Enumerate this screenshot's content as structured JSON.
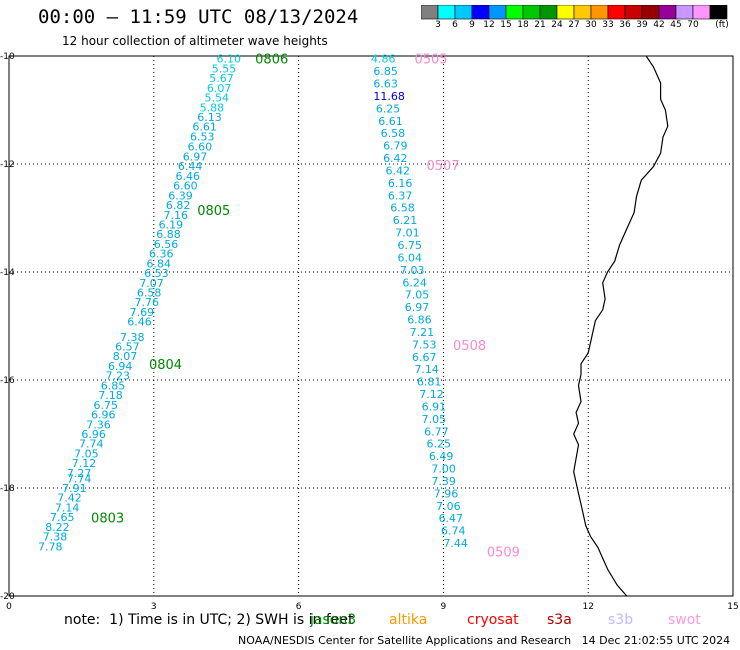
{
  "title": "00:00 – 11:59 UTC 08/13/2024",
  "subtitle": "12 hour collection of altimeter wave heights",
  "colorbar": {
    "unit_label": "(ft)",
    "colors": [
      "#808080",
      "#00ffff",
      "#00c8ff",
      "#0000ff",
      "#0096ff",
      "#00ff00",
      "#00c800",
      "#009600",
      "#ffff00",
      "#ffc800",
      "#ff9600",
      "#ff0000",
      "#c80000",
      "#960000",
      "#960096",
      "#c896ff",
      "#ff96ff",
      "#000000"
    ],
    "ticks": [
      "3",
      "6",
      "9",
      "12",
      "15",
      "18",
      "21",
      "24",
      "27",
      "30",
      "33",
      "36",
      "39",
      "42",
      "45",
      "70"
    ]
  },
  "chart_data": {
    "type": "map",
    "x_ticks": [
      "0",
      "3",
      "6",
      "9",
      "12",
      "15"
    ],
    "y_ticks": [
      "-10",
      "-12",
      "-14",
      "-16",
      "-18",
      "-20"
    ],
    "xlim": [
      0,
      15
    ],
    "ylim": [
      -20,
      -10
    ],
    "grid": true,
    "tracks": [
      {
        "pass_labels": [
          {
            "text": "0806",
            "x": 5.1,
            "y": -10.05
          },
          {
            "text": "0805",
            "x": 3.9,
            "y": -12.85
          },
          {
            "text": "0804",
            "x": 2.9,
            "y": -15.7
          },
          {
            "text": "0803",
            "x": 1.7,
            "y": -18.55
          }
        ],
        "label_color": "#008800",
        "points": [
          {
            "x": 4.3,
            "y": -10.05,
            "v": "6.10",
            "c": "#00ccdd"
          },
          {
            "x": 4.2,
            "y": -10.23,
            "v": "5.55",
            "c": "#00ccdd"
          },
          {
            "x": 4.15,
            "y": -10.41,
            "v": "5.67",
            "c": "#00ccdd"
          },
          {
            "x": 4.1,
            "y": -10.59,
            "v": "6.07",
            "c": "#00ccdd"
          },
          {
            "x": 4.05,
            "y": -10.77,
            "v": "5.54",
            "c": "#00ccdd"
          },
          {
            "x": 3.95,
            "y": -10.95,
            "v": "5.88",
            "c": "#00ccdd"
          },
          {
            "x": 3.9,
            "y": -11.13,
            "v": "6.13",
            "c": "#00aadd"
          },
          {
            "x": 3.8,
            "y": -11.31,
            "v": "6.61",
            "c": "#00aadd"
          },
          {
            "x": 3.75,
            "y": -11.49,
            "v": "6.53",
            "c": "#00aadd"
          },
          {
            "x": 3.7,
            "y": -11.68,
            "v": "6.60",
            "c": "#00aadd"
          },
          {
            "x": 3.6,
            "y": -11.86,
            "v": "6.97",
            "c": "#00aadd"
          },
          {
            "x": 3.5,
            "y": -12.04,
            "v": "6.44",
            "c": "#00aadd"
          },
          {
            "x": 3.45,
            "y": -12.22,
            "v": "6.46",
            "c": "#00aadd"
          },
          {
            "x": 3.4,
            "y": -12.4,
            "v": "6.60",
            "c": "#00aadd"
          },
          {
            "x": 3.3,
            "y": -12.58,
            "v": "6.39",
            "c": "#00aadd"
          },
          {
            "x": 3.25,
            "y": -12.76,
            "v": "6.82",
            "c": "#00aadd"
          },
          {
            "x": 3.2,
            "y": -12.94,
            "v": "7.16",
            "c": "#00aadd"
          },
          {
            "x": 3.1,
            "y": -13.12,
            "v": "6.19",
            "c": "#00aadd"
          },
          {
            "x": 3.05,
            "y": -13.3,
            "v": "6.88",
            "c": "#00aadd"
          },
          {
            "x": 3.0,
            "y": -13.48,
            "v": "6.56",
            "c": "#00aadd"
          },
          {
            "x": 2.9,
            "y": -13.66,
            "v": "6.36",
            "c": "#00aadd"
          },
          {
            "x": 2.85,
            "y": -13.84,
            "v": "6.84",
            "c": "#00aadd"
          },
          {
            "x": 2.8,
            "y": -14.02,
            "v": "6.53",
            "c": "#00aadd"
          },
          {
            "x": 2.7,
            "y": -14.2,
            "v": "7.07",
            "c": "#00aadd"
          },
          {
            "x": 2.65,
            "y": -14.38,
            "v": "6.58",
            "c": "#00aadd"
          },
          {
            "x": 2.6,
            "y": -14.56,
            "v": "7.76",
            "c": "#00aadd"
          },
          {
            "x": 2.5,
            "y": -14.74,
            "v": "7.69",
            "c": "#00aadd"
          },
          {
            "x": 2.45,
            "y": -14.92,
            "v": "6.46",
            "c": "#00aadd"
          },
          {
            "x": 2.3,
            "y": -15.2,
            "v": "7.38",
            "c": "#00aadd"
          },
          {
            "x": 2.2,
            "y": -15.38,
            "v": "6.57",
            "c": "#00aadd"
          },
          {
            "x": 2.15,
            "y": -15.56,
            "v": "8.07",
            "c": "#00aadd"
          },
          {
            "x": 2.05,
            "y": -15.74,
            "v": "6.94",
            "c": "#00aadd"
          },
          {
            "x": 2.0,
            "y": -15.92,
            "v": "7.23",
            "c": "#00aadd"
          },
          {
            "x": 1.9,
            "y": -16.1,
            "v": "6.85",
            "c": "#00aadd"
          },
          {
            "x": 1.85,
            "y": -16.28,
            "v": "7.18",
            "c": "#00aadd"
          },
          {
            "x": 1.75,
            "y": -16.46,
            "v": "6.75",
            "c": "#00aadd"
          },
          {
            "x": 1.7,
            "y": -16.64,
            "v": "6.96",
            "c": "#00aadd"
          },
          {
            "x": 1.6,
            "y": -16.82,
            "v": "7.36",
            "c": "#00aadd"
          },
          {
            "x": 1.5,
            "y": -17.0,
            "v": "6.96",
            "c": "#00aadd"
          },
          {
            "x": 1.45,
            "y": -17.18,
            "v": "7.74",
            "c": "#00aadd"
          },
          {
            "x": 1.35,
            "y": -17.36,
            "v": "7.05",
            "c": "#00aadd"
          },
          {
            "x": 1.3,
            "y": -17.54,
            "v": "7.12",
            "c": "#00aadd"
          },
          {
            "x": 1.2,
            "y": -17.72,
            "v": "7.27",
            "c": "#00aadd"
          },
          {
            "x": 1.2,
            "y": -17.82,
            "v": "7.74",
            "c": "#00aadd"
          },
          {
            "x": 1.1,
            "y": -18.0,
            "v": "7.91",
            "c": "#00aadd"
          },
          {
            "x": 1.0,
            "y": -18.18,
            "v": "7.42",
            "c": "#00aadd"
          },
          {
            "x": 0.95,
            "y": -18.36,
            "v": "7.14",
            "c": "#00aadd"
          },
          {
            "x": 0.85,
            "y": -18.54,
            "v": "7.65",
            "c": "#00aadd"
          },
          {
            "x": 0.75,
            "y": -18.72,
            "v": "8.22",
            "c": "#00aadd"
          },
          {
            "x": 0.7,
            "y": -18.9,
            "v": "7.38",
            "c": "#00aadd"
          },
          {
            "x": 0.6,
            "y": -19.08,
            "v": "7.78",
            "c": "#00aadd"
          }
        ]
      },
      {
        "pass_labels": [
          {
            "text": "0505",
            "x": 8.4,
            "y": -10.05
          },
          {
            "text": "0507",
            "x": 8.65,
            "y": -12.02
          },
          {
            "text": "0508",
            "x": 9.2,
            "y": -15.35
          },
          {
            "text": "0509",
            "x": 9.9,
            "y": -19.18
          }
        ],
        "label_color": "#ff88cc",
        "points": [
          {
            "x": 7.5,
            "y": -10.05,
            "v": "4.86",
            "c": "#00ccdd"
          },
          {
            "x": 7.55,
            "y": -10.28,
            "v": "6.85",
            "c": "#00aadd"
          },
          {
            "x": 7.55,
            "y": -10.51,
            "v": "6.63",
            "c": "#00aadd"
          },
          {
            "x": 7.55,
            "y": -10.74,
            "v": "11.68",
            "c": "#0000cc"
          },
          {
            "x": 7.6,
            "y": -10.97,
            "v": "6.25",
            "c": "#00aadd"
          },
          {
            "x": 7.65,
            "y": -11.2,
            "v": "6.61",
            "c": "#00aadd"
          },
          {
            "x": 7.7,
            "y": -11.43,
            "v": "6.58",
            "c": "#00aadd"
          },
          {
            "x": 7.75,
            "y": -11.66,
            "v": "6.79",
            "c": "#00aadd"
          },
          {
            "x": 7.75,
            "y": -11.89,
            "v": "6.42",
            "c": "#00aadd"
          },
          {
            "x": 7.8,
            "y": -12.12,
            "v": "6.42",
            "c": "#00aadd"
          },
          {
            "x": 7.85,
            "y": -12.35,
            "v": "6.16",
            "c": "#00aadd"
          },
          {
            "x": 7.85,
            "y": -12.58,
            "v": "6.37",
            "c": "#00aadd"
          },
          {
            "x": 7.9,
            "y": -12.81,
            "v": "6.58",
            "c": "#00aadd"
          },
          {
            "x": 7.95,
            "y": -13.04,
            "v": "6.21",
            "c": "#00aadd"
          },
          {
            "x": 8.0,
            "y": -13.27,
            "v": "7.01",
            "c": "#00aadd"
          },
          {
            "x": 8.05,
            "y": -13.5,
            "v": "6.75",
            "c": "#00aadd"
          },
          {
            "x": 8.05,
            "y": -13.73,
            "v": "6.04",
            "c": "#00aadd"
          },
          {
            "x": 8.1,
            "y": -13.96,
            "v": "7.03",
            "c": "#00aadd"
          },
          {
            "x": 8.15,
            "y": -14.19,
            "v": "6.24",
            "c": "#00aadd"
          },
          {
            "x": 8.2,
            "y": -14.42,
            "v": "7.05",
            "c": "#00aadd"
          },
          {
            "x": 8.2,
            "y": -14.65,
            "v": "6.97",
            "c": "#00aadd"
          },
          {
            "x": 8.25,
            "y": -14.88,
            "v": "6.86",
            "c": "#00aadd"
          },
          {
            "x": 8.3,
            "y": -15.11,
            "v": "7.21",
            "c": "#00aadd"
          },
          {
            "x": 8.35,
            "y": -15.34,
            "v": "7.53",
            "c": "#00aadd"
          },
          {
            "x": 8.35,
            "y": -15.57,
            "v": "6.67",
            "c": "#00aadd"
          },
          {
            "x": 8.4,
            "y": -15.8,
            "v": "7.14",
            "c": "#00aadd"
          },
          {
            "x": 8.45,
            "y": -16.03,
            "v": "6.81",
            "c": "#00aadd"
          },
          {
            "x": 8.5,
            "y": -16.26,
            "v": "7.12",
            "c": "#00aadd"
          },
          {
            "x": 8.55,
            "y": -16.49,
            "v": "6.91",
            "c": "#00aadd"
          },
          {
            "x": 8.55,
            "y": -16.72,
            "v": "7.05",
            "c": "#00aadd"
          },
          {
            "x": 8.6,
            "y": -16.95,
            "v": "6.77",
            "c": "#00aadd"
          },
          {
            "x": 8.65,
            "y": -17.18,
            "v": "6.25",
            "c": "#00aadd"
          },
          {
            "x": 8.7,
            "y": -17.41,
            "v": "6.49",
            "c": "#00aadd"
          },
          {
            "x": 8.75,
            "y": -17.64,
            "v": "7.00",
            "c": "#00aadd"
          },
          {
            "x": 8.75,
            "y": -17.87,
            "v": "7.39",
            "c": "#00aadd"
          },
          {
            "x": 8.8,
            "y": -18.1,
            "v": "7.96",
            "c": "#00aadd"
          },
          {
            "x": 8.85,
            "y": -18.33,
            "v": "7.06",
            "c": "#00aadd"
          },
          {
            "x": 8.9,
            "y": -18.56,
            "v": "6.47",
            "c": "#00aadd"
          },
          {
            "x": 8.95,
            "y": -18.79,
            "v": "6.74",
            "c": "#00aadd"
          },
          {
            "x": 9.0,
            "y": -19.02,
            "v": "7.44",
            "c": "#00aadd"
          }
        ]
      }
    ],
    "coastline": [
      [
        13.2,
        -10.0
      ],
      [
        13.35,
        -10.2
      ],
      [
        13.5,
        -10.5
      ],
      [
        13.5,
        -10.8
      ],
      [
        13.6,
        -11.0
      ],
      [
        13.65,
        -11.3
      ],
      [
        13.55,
        -11.5
      ],
      [
        13.5,
        -11.8
      ],
      [
        13.35,
        -12.05
      ],
      [
        13.1,
        -12.3
      ],
      [
        13.0,
        -12.6
      ],
      [
        12.95,
        -12.9
      ],
      [
        12.8,
        -13.2
      ],
      [
        12.65,
        -13.5
      ],
      [
        12.55,
        -13.8
      ],
      [
        12.4,
        -14.0
      ],
      [
        12.3,
        -14.2
      ],
      [
        12.35,
        -14.5
      ],
      [
        12.3,
        -14.7
      ],
      [
        12.15,
        -14.9
      ],
      [
        12.1,
        -15.1
      ],
      [
        12.05,
        -15.3
      ],
      [
        12.0,
        -15.5
      ],
      [
        11.85,
        -15.7
      ],
      [
        11.85,
        -15.9
      ],
      [
        11.8,
        -16.1
      ],
      [
        11.85,
        -16.4
      ],
      [
        11.75,
        -16.6
      ],
      [
        11.8,
        -16.8
      ],
      [
        11.7,
        -17.0
      ],
      [
        11.8,
        -17.2
      ],
      [
        11.75,
        -17.45
      ],
      [
        11.7,
        -17.7
      ],
      [
        11.75,
        -17.9
      ],
      [
        11.8,
        -18.1
      ],
      [
        11.85,
        -18.3
      ],
      [
        11.9,
        -18.5
      ],
      [
        11.95,
        -18.7
      ],
      [
        12.05,
        -18.9
      ],
      [
        12.2,
        -19.1
      ],
      [
        12.3,
        -19.3
      ],
      [
        12.4,
        -19.5
      ],
      [
        12.6,
        -19.8
      ],
      [
        12.8,
        -20.0
      ]
    ]
  },
  "note": "note:  1) Time is in UTC; 2) SWH is in feet",
  "satellites": [
    {
      "name": "jason3",
      "color": "#008800"
    },
    {
      "name": "altika",
      "color": "#ff9900"
    },
    {
      "name": "cryosat",
      "color": "#ff0000"
    },
    {
      "name": "s3a",
      "color": "#aa0000"
    },
    {
      "name": "s3b",
      "color": "#bbbbff"
    },
    {
      "name": "swot",
      "color": "#ff99dd"
    }
  ],
  "footer": "NOAA/NESDIS Center for Satellite Applications and Research   14 Dec 21:02:55 UTC 2024"
}
